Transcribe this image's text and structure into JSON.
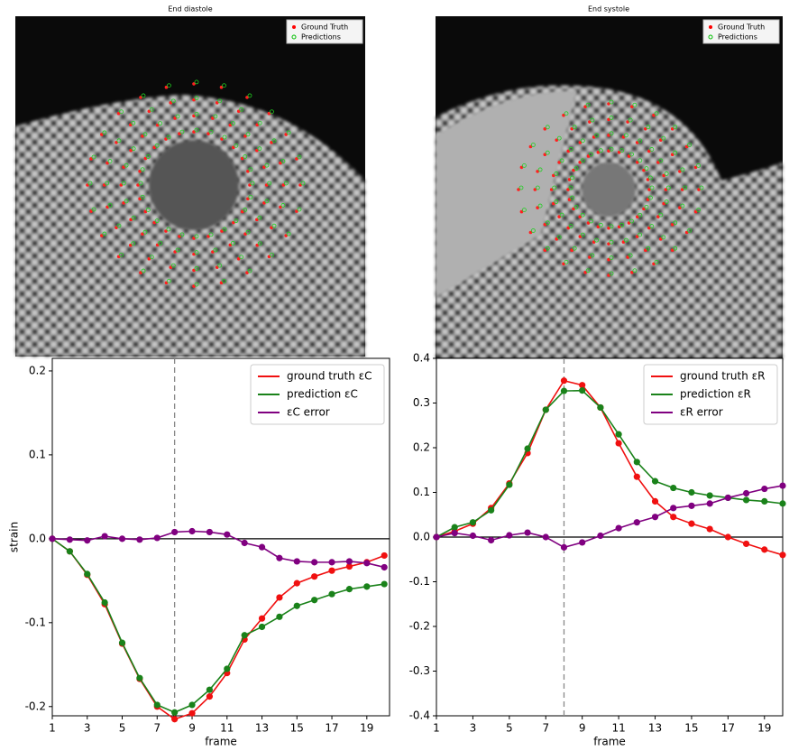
{
  "images": [
    {
      "title": "End diastole",
      "legend": [
        "Ground Truth",
        "Predictions"
      ]
    },
    {
      "title": "End systole",
      "legend": [
        "Ground Truth",
        "Predictions"
      ]
    }
  ],
  "chart_data": [
    {
      "type": "line",
      "x_label": "frame",
      "y_label": "strain",
      "x": [
        1,
        2,
        3,
        4,
        5,
        6,
        7,
        8,
        9,
        10,
        11,
        12,
        13,
        14,
        15,
        16,
        17,
        18,
        19,
        20
      ],
      "xlim": [
        1,
        20.3
      ],
      "xticks": [
        1,
        3,
        5,
        7,
        9,
        11,
        13,
        15,
        17,
        19
      ],
      "ylim": [
        -0.211,
        0.215
      ],
      "yticks": [
        -0.2,
        -0.1,
        {
          "value": 0,
          "label": "0.0"
        },
        0.1,
        0.2
      ],
      "vline_x": 8,
      "series": [
        {
          "name": "ground truth εC",
          "color": "#f01010",
          "values": [
            0,
            -0.015,
            -0.043,
            -0.078,
            -0.125,
            -0.167,
            -0.2,
            -0.215,
            -0.208,
            -0.188,
            -0.16,
            -0.12,
            -0.095,
            -0.07,
            -0.053,
            -0.045,
            -0.038,
            -0.033,
            -0.028,
            -0.02
          ]
        },
        {
          "name": "prediction εC",
          "color": "#1a821a",
          "values": [
            0,
            -0.015,
            -0.042,
            -0.076,
            -0.124,
            -0.166,
            -0.198,
            -0.207,
            -0.198,
            -0.18,
            -0.155,
            -0.115,
            -0.105,
            -0.093,
            -0.08,
            -0.073,
            -0.066,
            -0.06,
            -0.057,
            -0.054
          ]
        },
        {
          "name": "εC error",
          "color": "#800080",
          "values": [
            0,
            -0.001,
            -0.002,
            0.003,
            0,
            -0.001,
            0.001,
            0.008,
            0.009,
            0.008,
            0.005,
            -0.005,
            -0.01,
            -0.023,
            -0.027,
            -0.028,
            -0.028,
            -0.027,
            -0.029,
            -0.034
          ]
        }
      ]
    },
    {
      "type": "line",
      "x_label": "frame",
      "x": [
        1,
        2,
        3,
        4,
        5,
        6,
        7,
        8,
        9,
        10,
        11,
        12,
        13,
        14,
        15,
        16,
        17,
        18,
        19,
        20
      ],
      "xlim": [
        1,
        20
      ],
      "xticks": [
        1,
        3,
        5,
        7,
        9,
        11,
        13,
        15,
        17,
        19
      ],
      "ylim": [
        -0.4,
        0.4
      ],
      "yticks": [
        -0.4,
        -0.3,
        -0.2,
        -0.1,
        {
          "value": 0,
          "label": "0.0"
        },
        0.1,
        0.2,
        0.3,
        0.4
      ],
      "vline_x": 8,
      "series": [
        {
          "name": "ground truth εR",
          "color": "#f01010",
          "values": [
            0,
            0.013,
            0.03,
            0.065,
            0.12,
            0.188,
            0.285,
            0.35,
            0.34,
            0.29,
            0.21,
            0.135,
            0.08,
            0.045,
            0.03,
            0.018,
            0,
            -0.015,
            -0.028,
            -0.04
          ]
        },
        {
          "name": "prediction εR",
          "color": "#1a821a",
          "values": [
            0,
            0.022,
            0.033,
            0.06,
            0.117,
            0.198,
            0.285,
            0.327,
            0.328,
            0.29,
            0.23,
            0.168,
            0.125,
            0.11,
            0.1,
            0.093,
            0.088,
            0.083,
            0.08,
            0.075
          ]
        },
        {
          "name": "εR error",
          "color": "#800080",
          "values": [
            0,
            0.009,
            0.003,
            -0.007,
            0.004,
            0.01,
            0,
            -0.023,
            -0.012,
            0.003,
            0.02,
            0.033,
            0.045,
            0.065,
            0.07,
            0.075,
            0.088,
            0.098,
            0.108,
            0.115
          ]
        }
      ]
    }
  ]
}
